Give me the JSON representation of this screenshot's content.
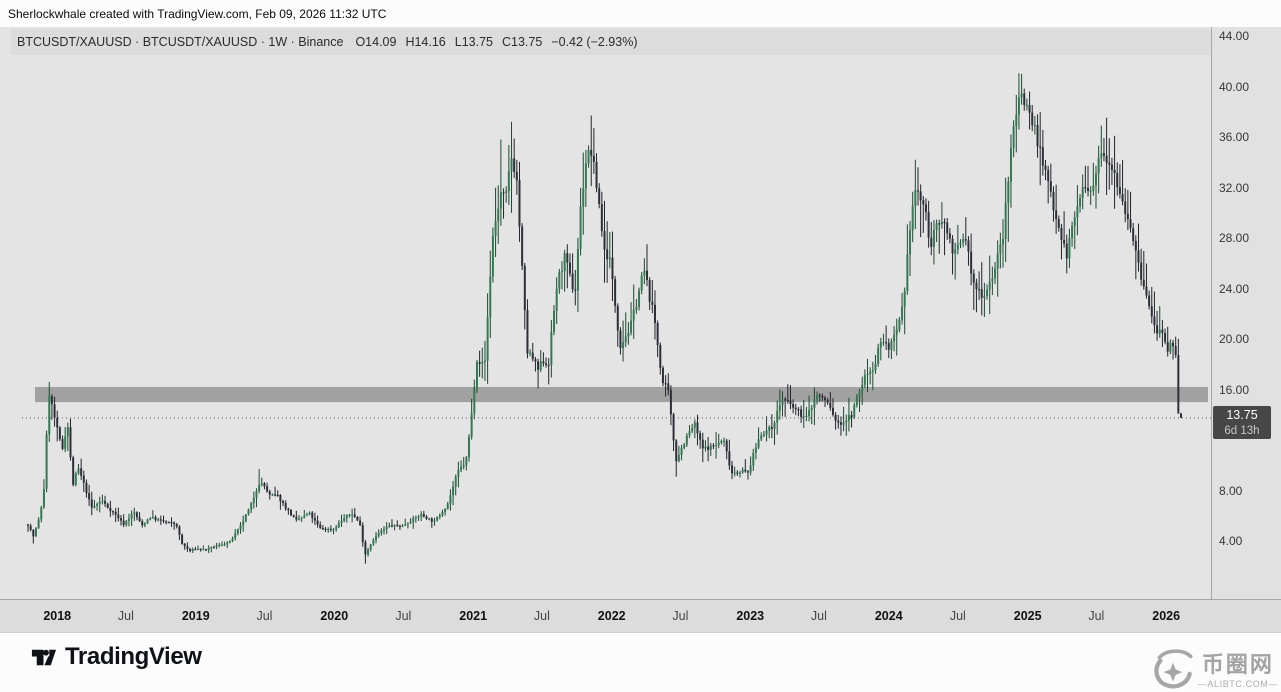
{
  "attribution": "Sherlockwhale created with TradingView.com, Feb 09, 2026 11:32 UTC",
  "header": {
    "title": "BTCUSDT/XAUUSD · BTCUSDT/XAUUSD · 1W · Binance",
    "ohlc": [
      {
        "label": "O",
        "value": "14.09"
      },
      {
        "label": "H",
        "value": "14.16"
      },
      {
        "label": "L",
        "value": "13.75"
      },
      {
        "label": "C",
        "value": "13.75"
      }
    ],
    "change": "−0.42 (−2.93%)"
  },
  "price_scale": {
    "current_price_label": "13.75",
    "countdown": "6d 13h"
  },
  "footer": {
    "brand": "TradingView",
    "watermark_name": "币圈网",
    "watermark_domain": "—ALIBTC.COM—"
  },
  "colors": {
    "candle_up": "#337a52",
    "candle_up_wick": "#1c4a31",
    "candle_down": "#2c2f37",
    "candle_down_wick": "#20242b",
    "resistance_zone": "#9b9b9b",
    "price_line": "#595959",
    "price_tag_bg": "#474747",
    "chart_bg": "#e4e4e4",
    "strip_bg": "#dcdcdc"
  },
  "chart_data": {
    "type": "candlestick",
    "symbol": "BTCUSDT/XAUUSD",
    "interval": "1W",
    "exchange": "Binance",
    "scale": "linear",
    "start_date": "2017-10-16",
    "end_date": "2026-02-09",
    "price_axis_range_visible": [
      0,
      44
    ],
    "price_ticks": [
      {
        "label": "44.00",
        "value": 44
      },
      {
        "label": "40.00",
        "value": 40
      },
      {
        "label": "36.00",
        "value": 36
      },
      {
        "label": "32.00",
        "value": 32
      },
      {
        "label": "28.00",
        "value": 28
      },
      {
        "label": "24.00",
        "value": 24
      },
      {
        "label": "20.00",
        "value": 20
      },
      {
        "label": "16.00",
        "value": 16
      },
      {
        "label": "8.00",
        "value": 8
      },
      {
        "label": "4.00",
        "value": 4
      }
    ],
    "time_ticks": [
      {
        "label": "2018",
        "date": "2018-01-01",
        "year": true
      },
      {
        "label": "Jul",
        "date": "2018-07-01",
        "year": false
      },
      {
        "label": "2019",
        "date": "2019-01-01",
        "year": true
      },
      {
        "label": "Jul",
        "date": "2019-07-01",
        "year": false
      },
      {
        "label": "2020",
        "date": "2020-01-01",
        "year": true
      },
      {
        "label": "Jul",
        "date": "2020-07-01",
        "year": false
      },
      {
        "label": "2021",
        "date": "2021-01-01",
        "year": true
      },
      {
        "label": "Jul",
        "date": "2021-07-01",
        "year": false
      },
      {
        "label": "2022",
        "date": "2022-01-01",
        "year": true
      },
      {
        "label": "Jul",
        "date": "2022-07-01",
        "year": false
      },
      {
        "label": "2023",
        "date": "2023-01-01",
        "year": true
      },
      {
        "label": "Jul",
        "date": "2023-07-01",
        "year": false
      },
      {
        "label": "2024",
        "date": "2024-01-01",
        "year": true
      },
      {
        "label": "Jul",
        "date": "2024-07-01",
        "year": false
      },
      {
        "label": "2025",
        "date": "2025-01-01",
        "year": true
      },
      {
        "label": "Jul",
        "date": "2025-07-01",
        "year": false
      },
      {
        "label": "2026",
        "date": "2026-01-01",
        "year": true
      }
    ],
    "resistance_zone": {
      "price_from": 15.0,
      "price_to": 16.2
    },
    "current_price": 13.75,
    "last_candle": {
      "open": 14.09,
      "high": 14.16,
      "low": 13.75,
      "close": 13.75,
      "change": -0.42,
      "change_pct": -2.93
    },
    "weekly_close_anchors": [
      [
        "2017-10-18",
        5.3
      ],
      [
        "2017-10-29",
        4.3
      ],
      [
        "2017-11-12",
        5.5
      ],
      [
        "2017-11-26",
        7.6
      ],
      [
        "2017-12-10",
        15.8
      ],
      [
        "2017-12-31",
        12.9
      ],
      [
        "2018-01-14",
        11.2
      ],
      [
        "2018-01-28",
        13.4
      ],
      [
        "2018-02-11",
        8.4
      ],
      [
        "2018-02-25",
        9.8
      ],
      [
        "2018-03-18",
        8.0
      ],
      [
        "2018-04-01",
        6.6
      ],
      [
        "2018-04-29",
        7.2
      ],
      [
        "2018-05-13",
        6.7
      ],
      [
        "2018-06-10",
        5.9
      ],
      [
        "2018-06-24",
        5.3
      ],
      [
        "2018-07-22",
        6.3
      ],
      [
        "2018-08-12",
        5.2
      ],
      [
        "2018-09-02",
        5.9
      ],
      [
        "2018-09-30",
        5.6
      ],
      [
        "2018-10-28",
        5.4
      ],
      [
        "2018-11-11",
        5.3
      ],
      [
        "2018-11-25",
        3.8
      ],
      [
        "2018-12-16",
        3.2
      ],
      [
        "2018-12-30",
        3.4
      ],
      [
        "2019-01-27",
        3.3
      ],
      [
        "2019-02-24",
        3.6
      ],
      [
        "2019-03-31",
        3.9
      ],
      [
        "2019-04-28",
        5.1
      ],
      [
        "2019-05-26",
        6.8
      ],
      [
        "2019-06-16",
        8.6
      ],
      [
        "2019-06-30",
        8.4
      ],
      [
        "2019-07-14",
        7.6
      ],
      [
        "2019-08-04",
        7.6
      ],
      [
        "2019-08-25",
        6.7
      ],
      [
        "2019-09-22",
        5.6
      ],
      [
        "2019-10-27",
        6.2
      ],
      [
        "2019-11-24",
        5.0
      ],
      [
        "2019-12-29",
        4.9
      ],
      [
        "2020-01-26",
        5.8
      ],
      [
        "2020-02-16",
        6.2
      ],
      [
        "2020-03-08",
        5.4
      ],
      [
        "2020-03-22",
        2.9
      ],
      [
        "2020-04-12",
        4.1
      ],
      [
        "2020-04-26",
        4.6
      ],
      [
        "2020-05-24",
        5.2
      ],
      [
        "2020-06-28",
        5.2
      ],
      [
        "2020-07-26",
        5.7
      ],
      [
        "2020-08-16",
        6.1
      ],
      [
        "2020-09-20",
        5.5
      ],
      [
        "2020-10-25",
        6.9
      ],
      [
        "2020-11-22",
        9.5
      ],
      [
        "2020-12-13",
        10.3
      ],
      [
        "2020-12-27",
        13.7
      ],
      [
        "2021-01-10",
        18.5
      ],
      [
        "2021-01-31",
        17.8
      ],
      [
        "2021-02-21",
        28.0
      ],
      [
        "2021-03-14",
        31.5
      ],
      [
        "2021-03-28",
        31.0
      ],
      [
        "2021-04-11",
        34.5
      ],
      [
        "2021-04-25",
        33.0
      ],
      [
        "2021-05-09",
        26.0
      ],
      [
        "2021-05-23",
        19.0
      ],
      [
        "2021-06-06",
        18.5
      ],
      [
        "2021-06-20",
        17.5
      ],
      [
        "2021-07-04",
        18.3
      ],
      [
        "2021-07-18",
        17.9
      ],
      [
        "2021-08-08",
        24.0
      ],
      [
        "2021-08-29",
        26.5
      ],
      [
        "2021-09-26",
        23.5
      ],
      [
        "2021-10-10",
        30.0
      ],
      [
        "2021-10-24",
        34.0
      ],
      [
        "2021-11-07",
        35.0
      ],
      [
        "2021-11-28",
        31.0
      ],
      [
        "2021-12-12",
        27.0
      ],
      [
        "2021-12-26",
        26.5
      ],
      [
        "2022-01-09",
        23.0
      ],
      [
        "2022-01-23",
        19.5
      ],
      [
        "2022-02-20",
        21.0
      ],
      [
        "2022-03-27",
        25.5
      ],
      [
        "2022-04-24",
        21.5
      ],
      [
        "2022-05-15",
        16.5
      ],
      [
        "2022-05-29",
        16.0
      ],
      [
        "2022-06-19",
        10.4
      ],
      [
        "2022-07-17",
        12.2
      ],
      [
        "2022-08-07",
        13.3
      ],
      [
        "2022-08-28",
        11.3
      ],
      [
        "2022-09-25",
        11.5
      ],
      [
        "2022-10-23",
        12.0
      ],
      [
        "2022-11-13",
        9.4
      ],
      [
        "2022-12-11",
        9.6
      ],
      [
        "2022-12-25",
        9.3
      ],
      [
        "2023-01-15",
        11.4
      ],
      [
        "2023-01-29",
        12.5
      ],
      [
        "2023-02-26",
        12.9
      ],
      [
        "2023-03-26",
        15.3
      ],
      [
        "2023-04-23",
        14.6
      ],
      [
        "2023-05-28",
        13.7
      ],
      [
        "2023-06-25",
        15.6
      ],
      [
        "2023-07-23",
        15.0
      ],
      [
        "2023-08-20",
        13.2
      ],
      [
        "2023-09-24",
        13.9
      ],
      [
        "2023-10-29",
        17.0
      ],
      [
        "2023-11-26",
        18.0
      ],
      [
        "2023-12-10",
        20.0
      ],
      [
        "2023-12-31",
        19.3
      ],
      [
        "2024-01-21",
        20.3
      ],
      [
        "2024-02-11",
        23.0
      ],
      [
        "2024-02-25",
        28.8
      ],
      [
        "2024-03-10",
        31.8
      ],
      [
        "2024-03-31",
        30.8
      ],
      [
        "2024-04-21",
        27.5
      ],
      [
        "2024-05-19",
        29.8
      ],
      [
        "2024-06-23",
        26.7
      ],
      [
        "2024-07-21",
        28.2
      ],
      [
        "2024-08-11",
        24.2
      ],
      [
        "2024-09-08",
        23.5
      ],
      [
        "2024-10-06",
        25.5
      ],
      [
        "2024-10-27",
        28.0
      ],
      [
        "2024-11-10",
        32.0
      ],
      [
        "2024-11-24",
        37.2
      ],
      [
        "2024-12-15",
        39.6
      ],
      [
        "2025-01-05",
        38.0
      ],
      [
        "2025-01-26",
        36.0
      ],
      [
        "2025-02-09",
        33.8
      ],
      [
        "2025-02-23",
        32.5
      ],
      [
        "2025-03-16",
        30.0
      ],
      [
        "2025-04-13",
        26.6
      ],
      [
        "2025-05-11",
        30.5
      ],
      [
        "2025-05-25",
        31.8
      ],
      [
        "2025-06-22",
        31.5
      ],
      [
        "2025-07-13",
        35.3
      ],
      [
        "2025-07-27",
        34.6
      ],
      [
        "2025-08-17",
        33.5
      ],
      [
        "2025-09-07",
        31.0
      ],
      [
        "2025-09-28",
        29.2
      ],
      [
        "2025-10-19",
        25.8
      ],
      [
        "2025-11-09",
        23.5
      ],
      [
        "2025-11-30",
        21.0
      ],
      [
        "2025-12-21",
        20.3
      ],
      [
        "2026-01-04",
        18.8
      ],
      [
        "2026-01-18",
        19.8
      ],
      [
        "2026-01-25",
        19.4
      ],
      [
        "2026-02-01",
        15.5
      ],
      [
        "2026-02-08",
        13.75
      ]
    ],
    "wick_highs": {
      "2017-12-10": 16.6,
      "2018-02-25": 10.1,
      "2019-06-16": 9.7,
      "2021-03-14": 35.8,
      "2021-04-11": 37.2,
      "2021-11-07": 37.7,
      "2022-03-27": 26.4,
      "2023-10-29": 17.6,
      "2024-03-10": 34.2,
      "2024-12-15": 41.0,
      "2025-01-05": 39.6,
      "2025-07-13": 36.9
    },
    "wick_lows": {
      "2017-10-29": 3.8,
      "2018-12-16": 3.1,
      "2019-01-27": 3.2,
      "2020-03-22": 2.2,
      "2021-06-20": 16.1,
      "2021-07-18": 16.4,
      "2022-06-19": 9.1,
      "2022-11-13": 8.9,
      "2023-08-20": 12.9,
      "2024-08-11": 22.3,
      "2025-04-13": 25.2,
      "2026-02-08": 13.75
    }
  }
}
